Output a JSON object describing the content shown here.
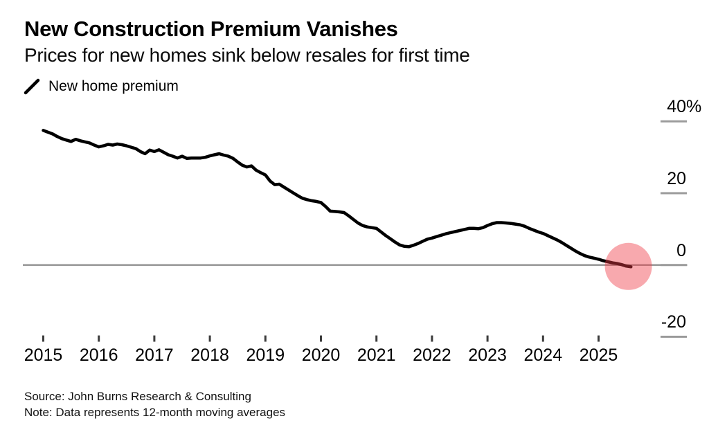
{
  "header": {
    "title": "New Construction Premium Vanishes",
    "subtitle": "Prices for new homes sink below resales for first time"
  },
  "legend": {
    "label": "New home premium",
    "marker_color": "#000000"
  },
  "footer": {
    "source": "Source: John Burns Research & Consulting",
    "note": "Note: Data represents 12-month moving averages"
  },
  "chart_data": {
    "type": "line",
    "title": "New Construction Premium Vanishes",
    "subtitle": "Prices for new homes sink below resales for first time",
    "unit": "%",
    "frequency": "monthly",
    "start": "2015-01",
    "series": [
      {
        "name": "New home premium",
        "color": "#000000",
        "values": [
          37.5,
          37.0,
          36.5,
          35.8,
          35.2,
          34.8,
          34.4,
          35.0,
          34.6,
          34.3,
          34.0,
          33.4,
          32.9,
          33.2,
          33.6,
          33.4,
          33.7,
          33.5,
          33.2,
          32.8,
          32.4,
          31.6,
          31.0,
          32.0,
          31.6,
          32.1,
          31.4,
          30.7,
          30.3,
          29.8,
          30.3,
          29.7,
          29.8,
          29.8,
          29.8,
          30.0,
          30.4,
          30.7,
          31.0,
          30.6,
          30.3,
          29.7,
          28.7,
          27.8,
          27.3,
          27.6,
          26.4,
          25.7,
          25.1,
          23.4,
          22.4,
          22.5,
          21.7,
          20.9,
          20.1,
          19.3,
          18.6,
          18.2,
          17.9,
          17.7,
          17.4,
          16.3,
          15.0,
          14.9,
          14.8,
          14.6,
          13.7,
          12.7,
          11.7,
          11.0,
          10.6,
          10.4,
          10.2,
          9.2,
          8.2,
          7.3,
          6.4,
          5.6,
          5.2,
          5.1,
          5.5,
          6.0,
          6.6,
          7.2,
          7.5,
          7.9,
          8.3,
          8.7,
          9.0,
          9.3,
          9.6,
          9.9,
          10.2,
          10.2,
          10.1,
          10.4,
          11.0,
          11.5,
          11.8,
          11.8,
          11.7,
          11.6,
          11.4,
          11.2,
          10.8,
          10.2,
          9.7,
          9.2,
          8.8,
          8.2,
          7.6,
          7.0,
          6.3,
          5.5,
          4.7,
          3.9,
          3.2,
          2.6,
          2.2,
          1.9,
          1.6,
          1.2,
          0.9,
          0.6,
          0.4,
          0.1,
          -0.3,
          -0.5
        ]
      }
    ],
    "x_ticks": [
      2015,
      2016,
      2017,
      2018,
      2019,
      2020,
      2021,
      2022,
      2023,
      2024,
      2025
    ],
    "y_ticks": [
      {
        "label": "40%",
        "value": 40
      },
      {
        "label": "20",
        "value": 20
      },
      {
        "label": "0",
        "value": 0
      },
      {
        "label": "-20",
        "value": -20
      }
    ],
    "ylim": [
      -27,
      45
    ],
    "axis_side": "right",
    "grid": "zero-line-only",
    "zero_line_color": "#9b9b9b",
    "tick_color": "#3c3c3c",
    "legend_position": "top-left",
    "highlight": {
      "type": "circle",
      "center_date": "2025-07",
      "center_value": -0.4,
      "color": "#ee3b47",
      "opacity": 0.44
    }
  }
}
